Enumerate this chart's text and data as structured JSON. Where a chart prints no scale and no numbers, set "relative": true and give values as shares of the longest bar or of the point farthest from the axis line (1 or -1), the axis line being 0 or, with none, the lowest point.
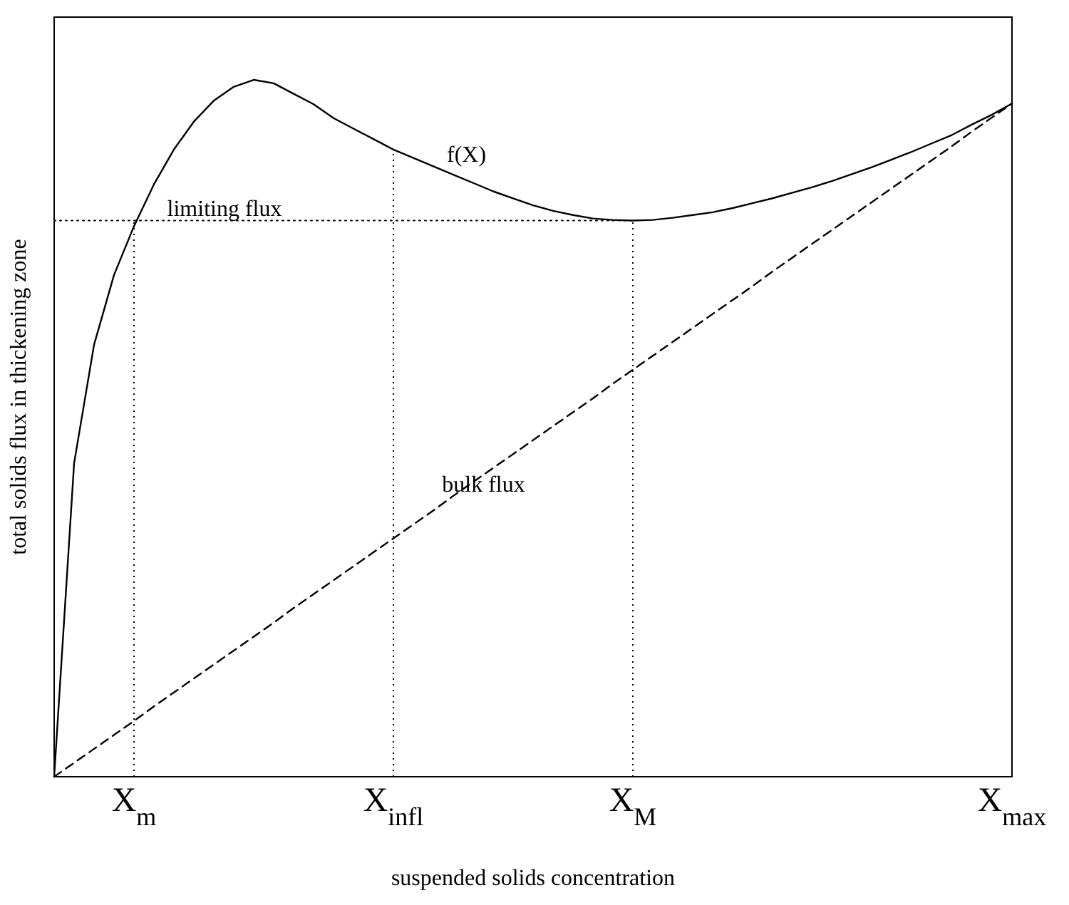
{
  "chart_data": {
    "type": "line",
    "relative": true,
    "xlabel": "suspended solids concentration",
    "ylabel": "total solids flux in thickening zone",
    "marker": "none",
    "categories": [
      null,
      null,
      null,
      null,
      "X$_{m}$",
      null,
      null,
      null,
      null,
      null,
      null,
      null,
      null,
      null,
      null,
      null,
      null,
      "X$_{infl}$",
      null,
      null,
      null,
      null,
      null,
      null,
      null,
      null,
      null,
      null,
      null,
      "X$_{M}$",
      null,
      null,
      null,
      null,
      null,
      null,
      null,
      null,
      null,
      null,
      null,
      null,
      null,
      null,
      null,
      null,
      null,
      null,
      "X$_{max}$"
    ],
    "series": [
      {
        "color": "#000000",
        "line_style": "solid",
        "values": [
          0,
          0.45,
          0.62,
          0.72,
          0.79,
          0.85,
          0.9,
          0.94,
          0.97,
          0.99,
          1,
          0.995,
          0.98,
          0.965,
          0.945,
          0.93,
          0.915,
          0.9,
          0.888,
          0.876,
          0.864,
          0.852,
          0.84,
          0.83,
          0.82,
          0.812,
          0.806,
          0.801,
          0.799,
          0.798,
          0.799,
          0.802,
          0.806,
          0.81,
          0.816,
          0.823,
          0.83,
          0.838,
          0.846,
          0.855,
          0.865,
          0.875,
          0.886,
          0.897,
          0.909,
          0.921,
          0.936,
          0.95,
          0.966
        ]
      },
      {
        "color": "#000000",
        "line_style": "dashed",
        "values": [
          0,
          0.02,
          0.04,
          0.06,
          0.08,
          0.101,
          0.121,
          0.141,
          0.161,
          0.181,
          0.201,
          0.221,
          0.242,
          0.262,
          0.282,
          0.302,
          0.322,
          0.342,
          0.362,
          0.382,
          0.403,
          0.423,
          0.443,
          0.463,
          0.483,
          0.503,
          0.523,
          0.543,
          0.564,
          0.584,
          0.604,
          0.624,
          0.644,
          0.664,
          0.684,
          0.704,
          0.725,
          0.745,
          0.765,
          0.785,
          0.805,
          0.825,
          0.845,
          0.865,
          0.885,
          0.905,
          0.926,
          0.946,
          0.966
        ]
      },
      {
        "color": "#000000",
        "line_style": "dotted",
        "values": [
          0.798,
          0.798,
          0.798,
          0.798,
          0.798,
          0.798,
          0.798,
          0.798,
          0.798,
          0.798,
          0.798,
          0.798,
          0.798,
          0.798,
          0.798,
          0.798,
          0.798,
          0.798,
          0.798,
          0.798,
          0.798,
          0.798,
          0.798,
          0.798,
          0.798,
          0.798,
          0.798,
          0.798,
          0.798,
          0.798,
          null,
          null,
          null,
          null,
          null,
          null,
          null,
          null,
          null,
          null,
          null,
          null,
          null,
          null,
          null,
          null,
          null,
          null,
          null
        ]
      }
    ],
    "ref_lines": [
      {
        "axis": "x",
        "value": "X$_{m}$",
        "line_style": "dotted"
      },
      {
        "axis": "x",
        "value": "X$_{infl}$",
        "line_style": "dotted"
      },
      {
        "axis": "x",
        "value": "X$_{M}$",
        "line_style": "dotted"
      }
    ],
    "annotations": [
      "f(X)",
      "limiting flux",
      "bulk flux"
    ]
  }
}
